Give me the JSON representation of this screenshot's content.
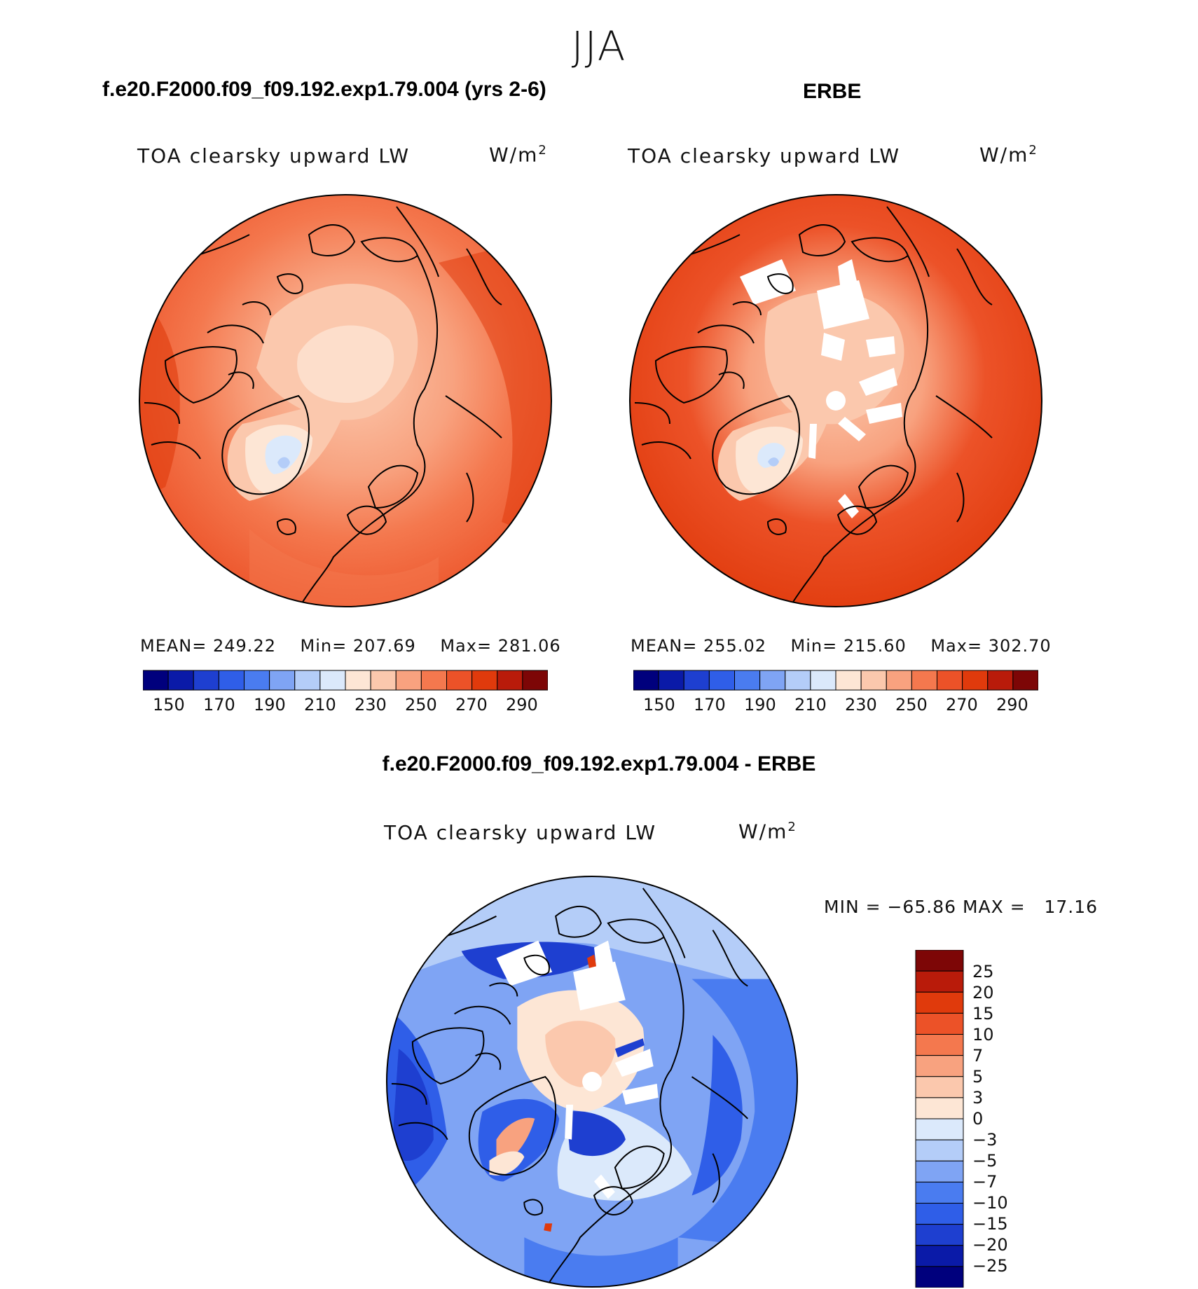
{
  "season_title": "JJA",
  "panels": [
    {
      "case_title": "f.e20.F2000.f09_f09.192.exp1.79.004 (yrs 2-6)",
      "variable": "TOA clearsky upward LW",
      "units_base": "W/m",
      "units_exp": "2",
      "stats": {
        "mean_label": "MEAN=",
        "mean": "249.22",
        "min_label": "Min=",
        "min": "207.69",
        "max_label": "Max=",
        "max": "281.06"
      },
      "colorbar_ticks": [
        "150",
        "170",
        "190",
        "210",
        "230",
        "250",
        "270",
        "290"
      ]
    },
    {
      "case_title": "ERBE",
      "variable": "TOA clearsky upward LW",
      "units_base": "W/m",
      "units_exp": "2",
      "stats": {
        "mean_label": "MEAN=",
        "mean": "255.02",
        "min_label": "Min=",
        "min": "215.60",
        "max_label": "Max=",
        "max": "302.70"
      },
      "colorbar_ticks": [
        "150",
        "170",
        "190",
        "210",
        "230",
        "250",
        "270",
        "290"
      ]
    }
  ],
  "difference": {
    "case_title": "f.e20.F2000.f09_f09.192.exp1.79.004 - ERBE",
    "variable": "TOA clearsky upward LW",
    "units_base": "W/m",
    "units_exp": "2",
    "minmax_text": "MIN = −65.86 MAX =   17.16",
    "colorbar_labels": [
      "25",
      "20",
      "15",
      "10",
      "7",
      "5",
      "3",
      "0",
      "−3",
      "−5",
      "−7",
      "−10",
      "−15",
      "−20",
      "−25"
    ]
  },
  "colors": {
    "abs_scale": [
      "#00007d",
      "#0a1aa8",
      "#1e3fd0",
      "#2f5ee8",
      "#4a7cf0",
      "#7fa4f4",
      "#b4cdf8",
      "#dbe9fb",
      "#fde6d5",
      "#fbc8ad",
      "#f8a27f",
      "#f4784e",
      "#ec5228",
      "#e03a0c",
      "#b91b0a",
      "#7d0606"
    ],
    "diff_scale": [
      "#7d0606",
      "#b91b0a",
      "#e03a0c",
      "#ec5228",
      "#f4784e",
      "#f8a27f",
      "#fbc8ad",
      "#fde6d5",
      "#dbe9fb",
      "#b4cdf8",
      "#7fa4f4",
      "#4a7cf0",
      "#2f5ee8",
      "#1e3fd0",
      "#0a1aa8",
      "#00007d"
    ]
  }
}
